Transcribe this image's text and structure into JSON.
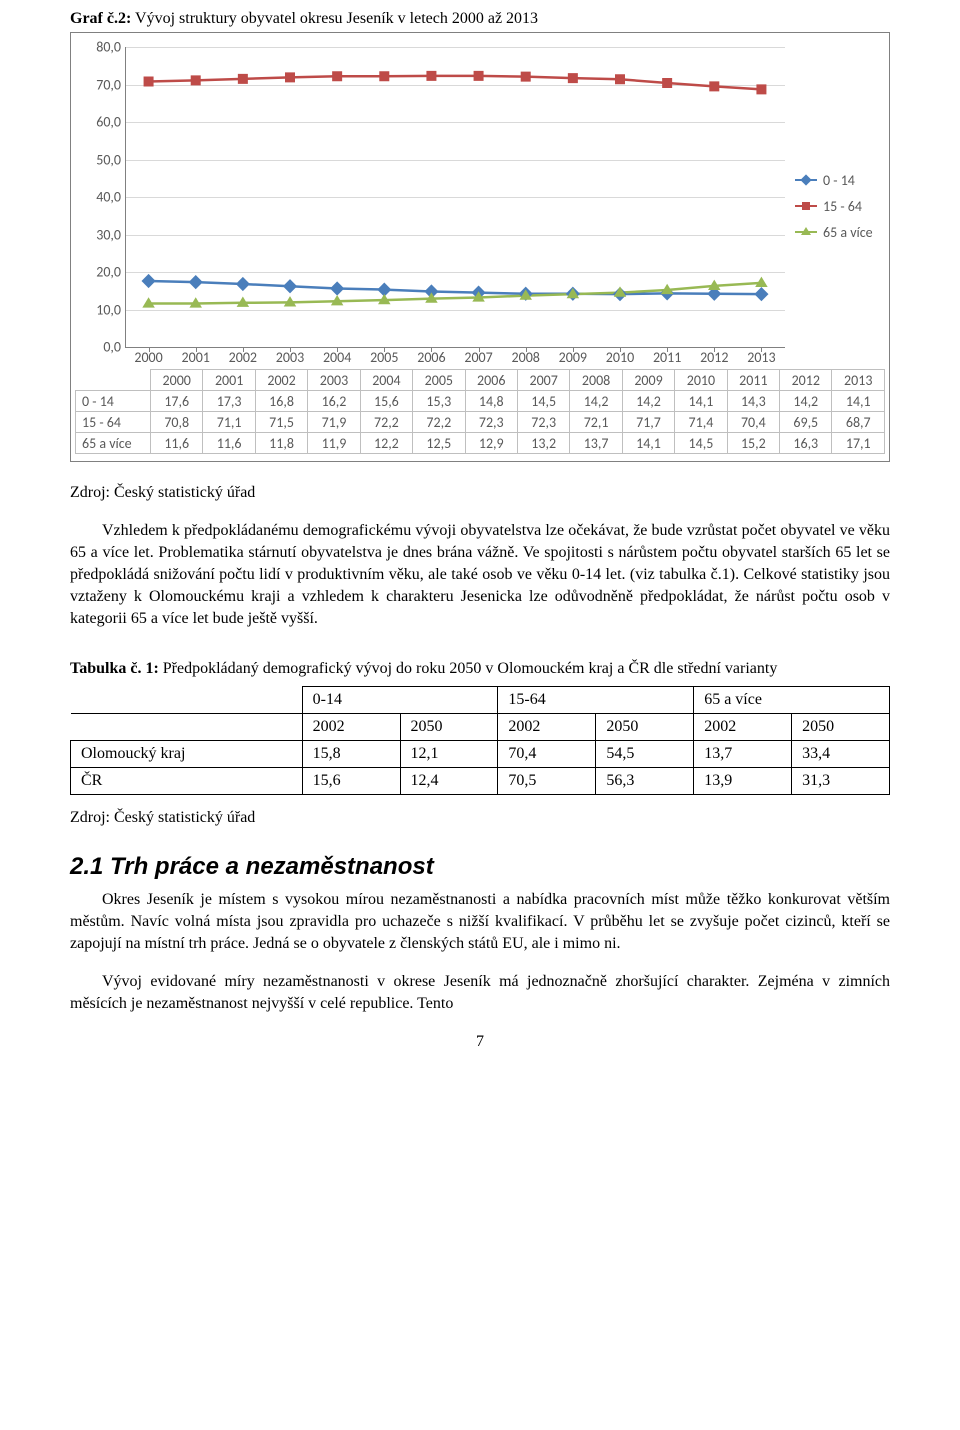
{
  "chartCaption": {
    "prefix": "Graf č.2:",
    "text": " Vývoj struktury obyvatel okresu Jeseník v letech 2000 až 2013"
  },
  "source": "Zdroj: Český statistický úřad",
  "para1": "Vzhledem k předpokládanému demografickému vývoji obyvatelstva lze očekávat, že bude vzrůstat počet obyvatel ve věku 65 a více let. Problematika stárnutí obyvatelstva je dnes brána vážně. Ve spojitosti s nárůstem počtu obyvatel starších 65 let se předpokládá snižování počtu lidí v produktivním věku, ale také osob ve věku 0-14 let. (viz tabulka č.1). Celkové statistiky jsou vztaženy k Olomouckému kraji a vzhledem k charakteru Jesenicka lze odůvodněně předpokládat, že nárůst počtu osob v kategorii 65 a více let bude ještě vyšší.",
  "tableCaption": {
    "prefix": "Tabulka č. 1:",
    "text": " Předpokládaný demografický vývoj do roku 2050 v Olomouckém kraj a ČR dle střední varianty"
  },
  "tableGroups": [
    "0-14",
    "15-64",
    "65 a více"
  ],
  "tableYears": [
    "2002",
    "2050",
    "2002",
    "2050",
    "2002",
    "2050"
  ],
  "tableRows": [
    {
      "label": "Olomoucký kraj",
      "vals": [
        "15,8",
        "12,1",
        "70,4",
        "54,5",
        "13,7",
        "33,4"
      ]
    },
    {
      "label": "ČR",
      "vals": [
        "15,6",
        "12,4",
        "70,5",
        "56,3",
        "13,9",
        "31,3"
      ]
    }
  ],
  "h2": "2.1 Trh práce a nezaměstnanost",
  "para2": "Okres Jeseník je místem s vysokou mírou nezaměstnanosti a nabídka pracovních míst může těžko konkurovat větším městům. Navíc volná místa jsou zpravidla pro uchazeče s nižší kvalifikací. V průběhu let se zvyšuje počet cizinců, kteří se zapojují na místní trh práce. Jedná se o obyvatele z členských států EU, ale i mimo ni.",
  "para3": "Vývoj evidované míry nezaměstnanosti v okrese Jeseník má jednoznačně zhoršující charakter. Zejména v zimních měsících je nezaměstnanost nejvyšší v celé republice. Tento",
  "pageNum": "7",
  "chart": {
    "type": "line",
    "ylim": [
      0,
      80
    ],
    "ytick_step": 10,
    "years": [
      "2000",
      "2001",
      "2002",
      "2003",
      "2004",
      "2005",
      "2006",
      "2007",
      "2008",
      "2009",
      "2010",
      "2011",
      "2012",
      "2013"
    ],
    "series": [
      {
        "key": "0 - 14",
        "color": "#4a7ebb",
        "marker": "diamond",
        "values": [
          17.6,
          17.3,
          16.8,
          16.2,
          15.6,
          15.3,
          14.8,
          14.5,
          14.2,
          14.2,
          14.1,
          14.3,
          14.2,
          14.1
        ]
      },
      {
        "key": "15 - 64",
        "color": "#be4b48",
        "marker": "square",
        "values": [
          70.8,
          71.1,
          71.5,
          71.9,
          72.2,
          72.2,
          72.3,
          72.3,
          72.1,
          71.7,
          71.4,
          70.4,
          69.5,
          68.7
        ]
      },
      {
        "key": "65 a více",
        "color": "#98b954",
        "marker": "triangle",
        "values": [
          11.6,
          11.6,
          11.8,
          11.9,
          12.2,
          12.5,
          12.9,
          13.2,
          13.7,
          14.1,
          14.5,
          15.2,
          16.3,
          17.1
        ]
      }
    ],
    "background_color": "#ffffff",
    "grid_color": "#d9d9d9",
    "axis_color": "#808080",
    "line_width": 2.5,
    "label_font": "Calibri",
    "label_fontsize": 14,
    "label_color": "#595959",
    "data_table_labels": [
      "0 - 14",
      "15 - 64",
      "65 a více"
    ],
    "data_table": [
      [
        "17,6",
        "17,3",
        "16,8",
        "16,2",
        "15,6",
        "15,3",
        "14,8",
        "14,5",
        "14,2",
        "14,2",
        "14,1",
        "14,3",
        "14,2",
        "14,1"
      ],
      [
        "70,8",
        "71,1",
        "71,5",
        "71,9",
        "72,2",
        "72,2",
        "72,3",
        "72,3",
        "72,1",
        "71,7",
        "71,4",
        "70,4",
        "69,5",
        "68,7"
      ],
      [
        "11,6",
        "11,6",
        "11,8",
        "11,9",
        "12,2",
        "12,5",
        "12,9",
        "13,2",
        "13,7",
        "14,1",
        "14,5",
        "15,2",
        "16,3",
        "17,1"
      ]
    ]
  }
}
